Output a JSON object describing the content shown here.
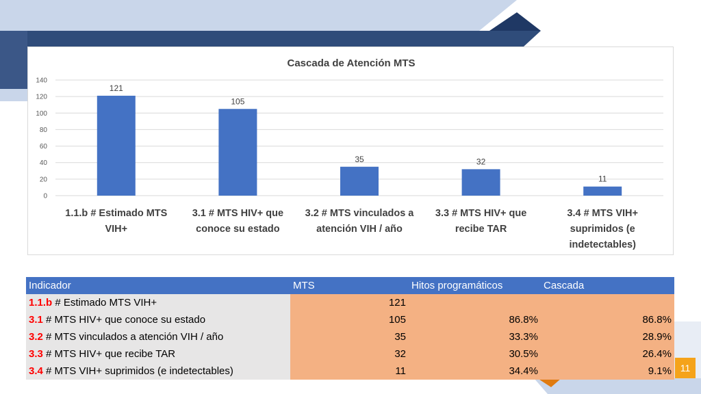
{
  "chart_data": {
    "type": "bar",
    "title": "Cascada de Atención  MTS",
    "categories": [
      [
        "1.1.b # Estimado MTS",
        "VIH+"
      ],
      [
        "3.1 # MTS HIV+ que",
        "conoce su estado"
      ],
      [
        "3.2 # MTS vinculados a",
        "atención VIH / año"
      ],
      [
        "3.3 # MTS HIV+ que",
        "recibe TAR"
      ],
      [
        "3.4 # MTS VIH+",
        "suprimidos (e",
        "indetectables)"
      ]
    ],
    "values": [
      121,
      105,
      35,
      32,
      11
    ],
    "data_labels": [
      "121",
      "105",
      "35",
      "32",
      "11"
    ],
    "ylim": [
      0,
      140
    ],
    "yticks": [
      0,
      20,
      40,
      60,
      80,
      100,
      120,
      140
    ],
    "grid": true,
    "legend": "none",
    "bar_color": "#4472c4"
  },
  "table": {
    "headers": [
      "Indicador",
      "MTS",
      "Hitos programáticos",
      "Cascada"
    ],
    "rows": [
      {
        "code": "1.1.b",
        "text": " # Estimado MTS VIH+",
        "mts": "121",
        "hitos": "",
        "cascada": ""
      },
      {
        "code": "3.1",
        "text": " # MTS HIV+ que conoce su estado",
        "mts": "105",
        "hitos": "86.8%",
        "cascada": "86.8%"
      },
      {
        "code": "3.2",
        "text": " # MTS vinculados a atención VIH / año",
        "mts": "35",
        "hitos": "33.3%",
        "cascada": "28.9%"
      },
      {
        "code": "3.3",
        "text": " # MTS HIV+ que recibe TAR",
        "mts": "32",
        "hitos": "30.5%",
        "cascada": "26.4%"
      },
      {
        "code": "3.4",
        "text": " # MTS VIH+ suprimidos (e indetectables)",
        "mts": "11",
        "hitos": "34.4%",
        "cascada": "9.1%"
      }
    ]
  },
  "page_number": "11",
  "colors": {
    "header_bg": "#4472c4",
    "indicator_bg": "#e7e6e6",
    "value_bg": "#f4b183",
    "code_text": "#ff0000",
    "badge_bg": "#f5a31a"
  }
}
